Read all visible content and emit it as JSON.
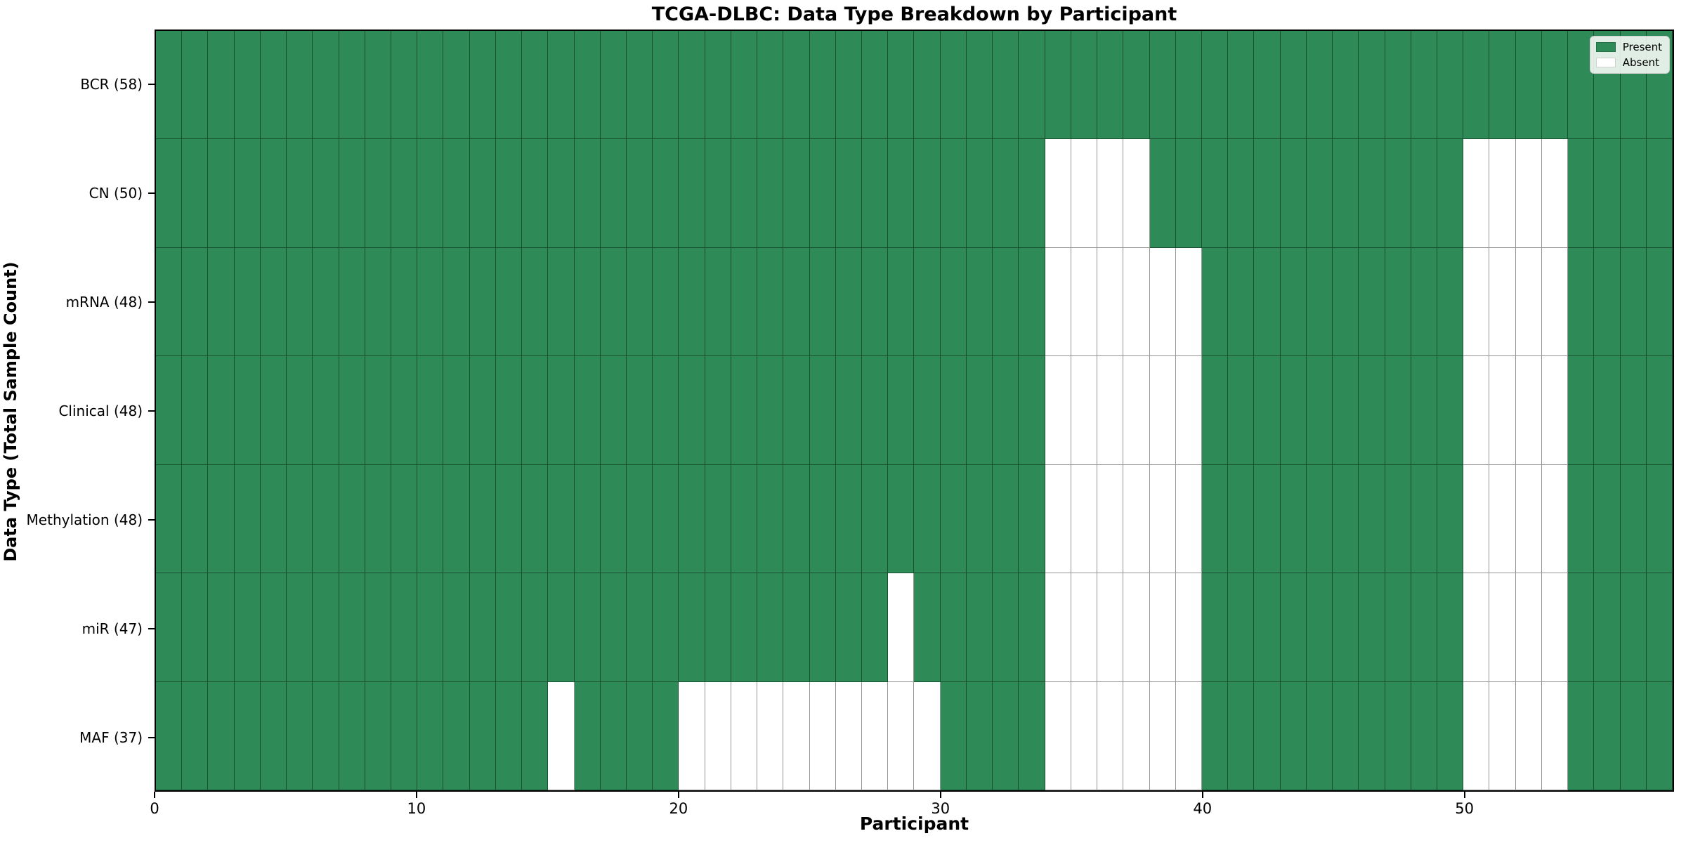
{
  "chart_data": {
    "type": "heatmap",
    "title": "TCGA-DLBC: Data Type Breakdown by Participant",
    "xlabel": "Participant",
    "ylabel": "Data Type (Total Sample Count)",
    "n_participants": 58,
    "x_ticks": [
      0,
      10,
      20,
      30,
      40,
      50
    ],
    "x_range": [
      0,
      58
    ],
    "grid": true,
    "legend_position": "upper right",
    "legend": [
      {
        "label": "Present",
        "color": "#2e8b57"
      },
      {
        "label": "Absent",
        "color": "#ffffff"
      }
    ],
    "cell_states": {
      "present": 1,
      "absent": 0
    },
    "rows": [
      {
        "label": "BCR (58)",
        "name": "BCR",
        "total_sample_count": 58,
        "absent_participants": []
      },
      {
        "label": "CN (50)",
        "name": "CN",
        "total_sample_count": 50,
        "absent_participants": [
          34,
          35,
          36,
          37,
          50,
          51,
          52,
          53
        ]
      },
      {
        "label": "mRNA (48)",
        "name": "mRNA",
        "total_sample_count": 48,
        "absent_participants": [
          34,
          35,
          36,
          37,
          38,
          39,
          50,
          51,
          52,
          53
        ]
      },
      {
        "label": "Clinical (48)",
        "name": "Clinical",
        "total_sample_count": 48,
        "absent_participants": [
          34,
          35,
          36,
          37,
          38,
          39,
          50,
          51,
          52,
          53
        ]
      },
      {
        "label": "Methylation (48)",
        "name": "Methylation",
        "total_sample_count": 48,
        "absent_participants": [
          34,
          35,
          36,
          37,
          38,
          39,
          50,
          51,
          52,
          53
        ]
      },
      {
        "label": "miR (47)",
        "name": "miR",
        "total_sample_count": 47,
        "absent_participants": [
          28,
          34,
          35,
          36,
          37,
          38,
          39,
          50,
          51,
          52,
          53
        ]
      },
      {
        "label": "MAF (37)",
        "name": "MAF",
        "total_sample_count": 37,
        "absent_participants": [
          15,
          20,
          21,
          22,
          23,
          24,
          25,
          26,
          27,
          28,
          29,
          34,
          35,
          36,
          37,
          38,
          39,
          50,
          51,
          52,
          53
        ]
      }
    ],
    "colors": {
      "present": "#2e8b57",
      "absent": "#ffffff",
      "grid_line": "rgba(0,0,0,0.42)",
      "spine": "#000000",
      "title_text": "#000000"
    }
  }
}
